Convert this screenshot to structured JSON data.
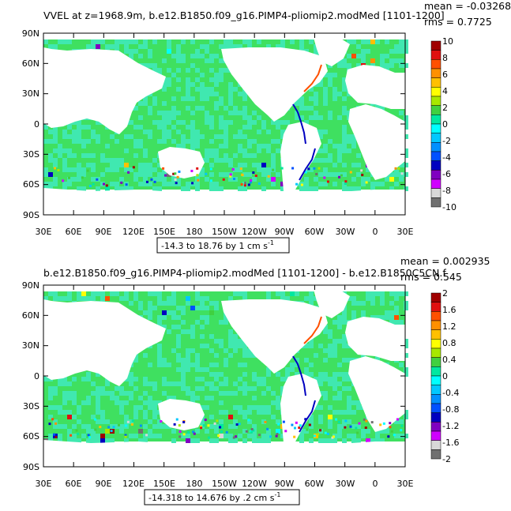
{
  "panels": [
    {
      "title": "VVEL at z=1968.9m, b.e12.B1850.f09_g16.PIMP4-pliomip2.modMed [1101-1200]",
      "mean_label": "mean = -0.03268",
      "rms_label": "rms = 0.7725",
      "range_label": "-14.3 to 18.76 by 1 cm s",
      "range_superscript": "-1",
      "colorbar_labels": [
        "10",
        "8",
        "6",
        "4",
        "2",
        "0",
        "-2",
        "-4",
        "-6",
        "-8",
        "-10"
      ],
      "colorbar_colors": [
        "#a00000",
        "#e01010",
        "#ff5000",
        "#ff9000",
        "#ffc000",
        "#ffff00",
        "#a8e800",
        "#40d040",
        "#00e8a0",
        "#00ffff",
        "#00c8ff",
        "#0090ff",
        "#0050ff",
        "#0000c0",
        "#8000c0",
        "#d000ff",
        "#d8d8d8",
        "#707070"
      ],
      "noise": 0.12
    },
    {
      "title": "b.e12.B1850.f09_g16.PIMP4-pliomip2.modMed [1101-1200] - b.e12.B1850C5CN.f",
      "mean_label": "mean = 0.002935",
      "rms_label": "rms = 0.545",
      "range_label": "-14.318 to 14.676 by .2 cm s",
      "range_superscript": "-1",
      "colorbar_labels": [
        "2",
        "1.6",
        "1.2",
        "0.8",
        "0.4",
        "0",
        "-0.4",
        "-0.8",
        "-1.2",
        "-1.6",
        "-2"
      ],
      "colorbar_colors": [
        "#a00000",
        "#e01010",
        "#ff5000",
        "#ff9000",
        "#ffc000",
        "#ffff00",
        "#a8e800",
        "#40d040",
        "#00e8a0",
        "#00ffff",
        "#00c8ff",
        "#0090ff",
        "#0050ff",
        "#0000c0",
        "#8000c0",
        "#d000ff",
        "#d8d8d8",
        "#707070"
      ],
      "noise": 0.22
    }
  ],
  "axes": {
    "lat_labels": [
      "90N",
      "60N",
      "30N",
      "0",
      "30S",
      "60S",
      "90S"
    ],
    "lon_labels": [
      "30E",
      "60E",
      "90E",
      "120E",
      "150E",
      "180",
      "150W",
      "120W",
      "90W",
      "60W",
      "30W",
      "0",
      "30E"
    ]
  },
  "colors": {
    "ocean_main": "#3fe060",
    "ocean_alt": "#40e8b0",
    "land": "#ffffff"
  }
}
